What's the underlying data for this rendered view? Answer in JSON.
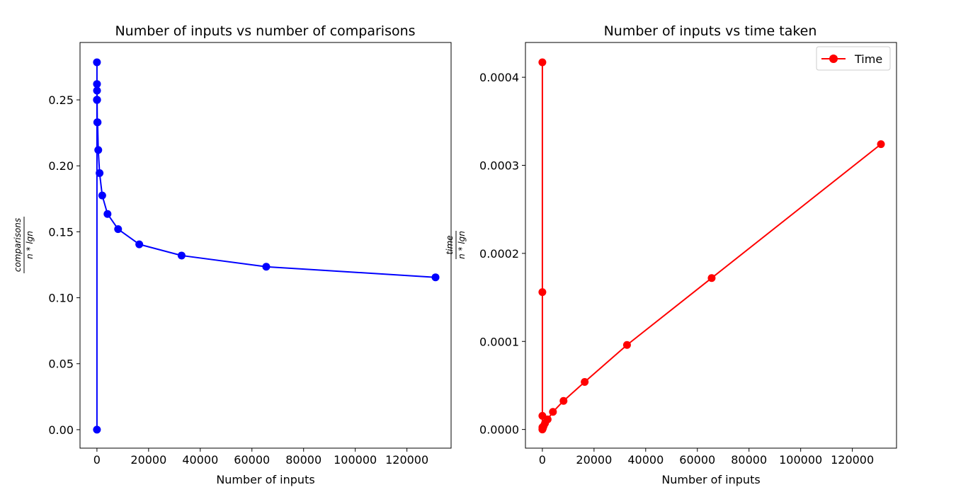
{
  "chart_data": [
    {
      "type": "line",
      "title": "Number of inputs vs number of comparisons",
      "xlabel": "Number of inputs",
      "ylabel": {
        "numerator": "comparisons",
        "denominator": "n * lgn"
      },
      "xlim": [
        -6550,
        137100
      ],
      "ylim": [
        -0.014,
        0.2935
      ],
      "xticks": [
        0,
        20000,
        40000,
        60000,
        80000,
        100000,
        120000
      ],
      "yticks": [
        0.0,
        0.05,
        0.1,
        0.15,
        0.2,
        0.25
      ],
      "ytick_labels": [
        "0.00",
        "0.05",
        "0.10",
        "0.15",
        "0.20",
        "0.25"
      ],
      "legend": null,
      "grid": false,
      "color": "#0000ff",
      "series": [
        {
          "x": [
            1,
            2,
            4,
            8,
            16,
            32,
            64,
            128,
            256,
            512,
            1024,
            2048,
            4096,
            8192,
            16384,
            32768,
            65536,
            131072
          ],
          "values": [
            0.0,
            0.25,
            0.2785,
            0.25,
            0.262,
            0.257,
            0.25,
            0.233,
            0.233,
            0.212,
            0.1945,
            0.1775,
            0.1635,
            0.152,
            0.1405,
            0.132,
            0.1235,
            0.1155
          ]
        }
      ]
    },
    {
      "type": "line",
      "title": "Number of inputs vs time taken",
      "xlabel": "Number of inputs",
      "ylabel": {
        "numerator": "time",
        "denominator": "n * lgn"
      },
      "xlim": [
        -6550,
        137100
      ],
      "ylim": [
        -2.12e-05,
        0.0004395
      ],
      "xticks": [
        0,
        20000,
        40000,
        60000,
        80000,
        100000,
        120000
      ],
      "yticks": [
        0.0,
        0.0001,
        0.0002,
        0.0003,
        0.0004
      ],
      "ytick_labels": [
        "0.0000",
        "0.0001",
        "0.0002",
        "0.0003",
        "0.0004"
      ],
      "legend": {
        "position": "upper-right",
        "entries": [
          "Time"
        ]
      },
      "grid": false,
      "color": "#ff0000",
      "series": [
        {
          "name": "Time",
          "x": [
            1,
            2,
            4,
            8,
            16,
            32,
            64,
            128,
            256,
            512,
            1024,
            2048,
            4096,
            8192,
            16384,
            32768,
            65536,
            131072
          ],
          "values": [
            0.0,
            0.000417,
            0.000156,
            1.55e-05,
            2.5e-06,
            1e-06,
            8e-07,
            1e-06,
            2e-06,
            4e-06,
            7e-06,
            1.15e-05,
            2e-05,
            3.25e-05,
            5.4e-05,
            9.6e-05,
            0.000172,
            0.000324
          ]
        }
      ]
    }
  ]
}
